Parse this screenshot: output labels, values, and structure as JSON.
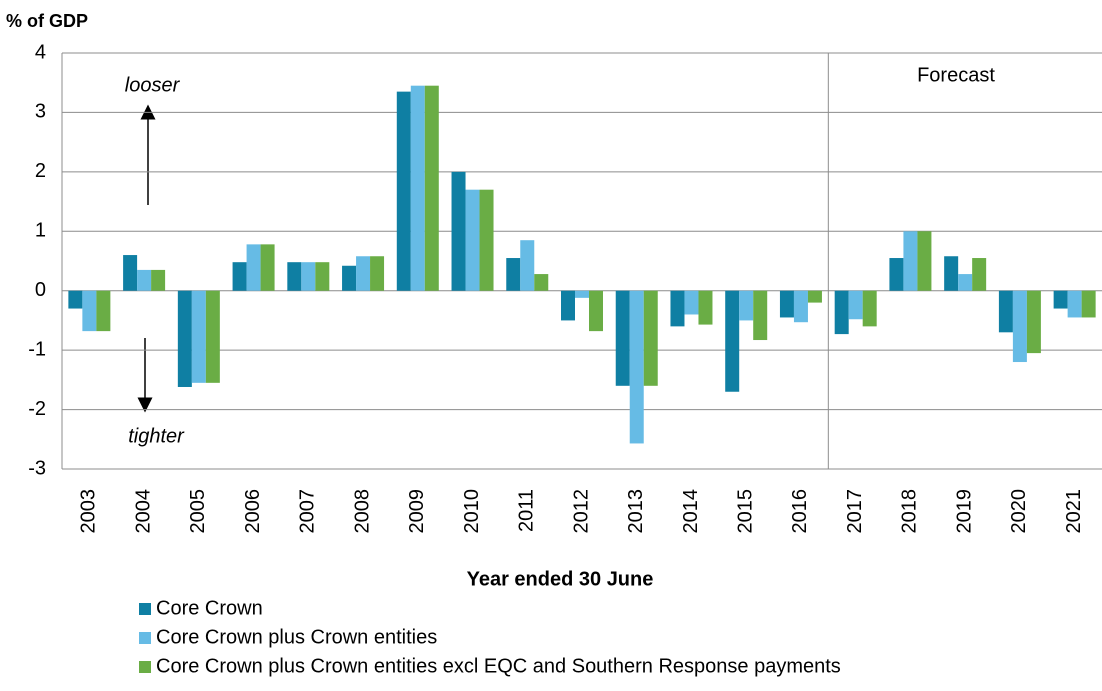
{
  "chart_data": {
    "type": "bar",
    "y_axis_label": "% of GDP",
    "x_axis_label": "Year ended 30 June",
    "annotations": {
      "upper": "looser",
      "lower": "tighter",
      "forecast": "Forecast"
    },
    "categories": [
      "2003",
      "2004",
      "2005",
      "2006",
      "2007",
      "2008",
      "2009",
      "2010",
      "2011",
      "2012",
      "2013",
      "2014",
      "2015",
      "2016",
      "2017",
      "2018",
      "2019",
      "2020",
      "2021"
    ],
    "series": [
      {
        "name": "Core Crown",
        "color": "#0f7fa3",
        "values": [
          -0.3,
          0.6,
          -1.62,
          0.48,
          0.48,
          0.42,
          3.35,
          2.0,
          0.55,
          -0.5,
          -1.6,
          -0.6,
          -1.7,
          -0.45,
          -0.73,
          0.55,
          0.58,
          -0.7,
          -0.3
        ]
      },
      {
        "name": "Core Crown plus Crown entities",
        "color": "#66bbe5",
        "values": [
          -0.68,
          0.35,
          -1.55,
          0.78,
          0.48,
          0.58,
          3.45,
          1.7,
          0.85,
          -0.12,
          -2.57,
          -0.4,
          -0.5,
          -0.53,
          -0.48,
          1.0,
          0.28,
          -1.2,
          -0.45
        ]
      },
      {
        "name": "Core Crown plus Crown entities excl EQC and Southern Response payments",
        "color": "#6aad45",
        "values": [
          -0.68,
          0.35,
          -1.55,
          0.78,
          0.48,
          0.58,
          3.45,
          1.7,
          0.28,
          -0.68,
          -1.6,
          -0.57,
          -0.83,
          -0.2,
          -0.6,
          1.0,
          0.55,
          -1.05,
          -0.45
        ]
      }
    ],
    "ylim": [
      -3,
      4
    ],
    "yticks": [
      -3,
      -2,
      -1,
      0,
      1,
      2,
      3,
      4
    ],
    "grid": true,
    "legend": "bottom-left"
  }
}
